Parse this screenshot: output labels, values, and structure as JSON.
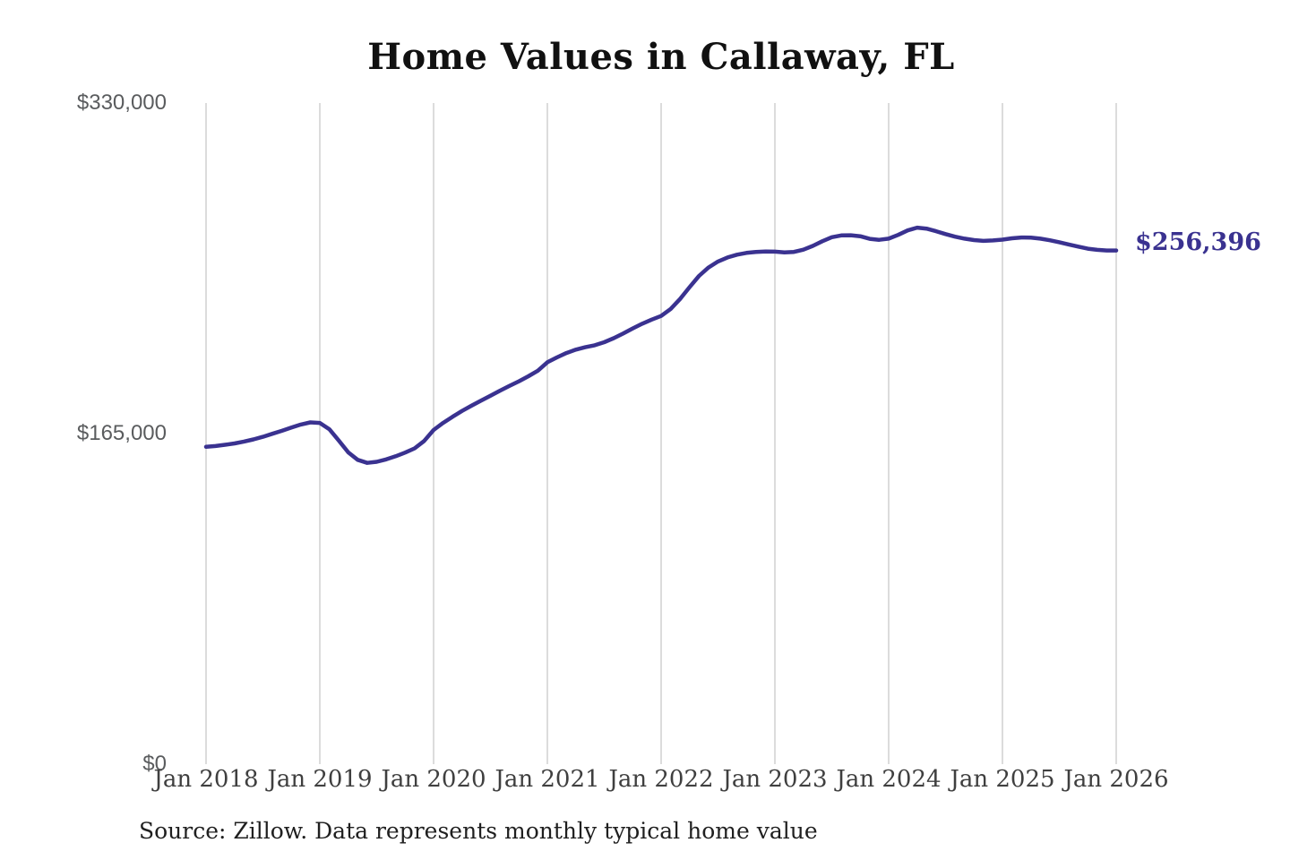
{
  "header": {
    "title": "Home Values in Callaway, FL"
  },
  "chart_data": {
    "type": "line",
    "title": "Home Values in Callaway, FL",
    "xlabel": "",
    "ylabel": "",
    "ylim": [
      0,
      330000
    ],
    "grid": "vertical-only",
    "gridline_color": "#c9c9c9",
    "x_frequency": "monthly",
    "x_start": "Jan 2018",
    "x_end": "Jan 2026",
    "x_tick_labels": [
      "Jan 2018",
      "Jan 2019",
      "Jan 2020",
      "Jan 2021",
      "Jan 2022",
      "Jan 2023",
      "Jan 2024",
      "Jan 2025",
      "Jan 2026"
    ],
    "y_ticks": [
      {
        "label": "$330,000",
        "value": 330000
      },
      {
        "label": "$165,000",
        "value": 165000
      },
      {
        "label": "$0",
        "value": 0
      }
    ],
    "series": [
      {
        "name": "Monthly typical home value",
        "color": "#3a3290",
        "values": [
          158400,
          158800,
          159400,
          160100,
          161000,
          162100,
          163400,
          164900,
          166400,
          168000,
          169500,
          170600,
          170300,
          167200,
          161500,
          155600,
          151900,
          150400,
          150900,
          152100,
          153700,
          155500,
          157600,
          161300,
          166800,
          170300,
          173400,
          176300,
          178900,
          181400,
          183900,
          186400,
          188800,
          191100,
          193600,
          196400,
          200600,
          203000,
          205200,
          206900,
          208100,
          209100,
          210600,
          212600,
          215000,
          217500,
          219800,
          221900,
          223700,
          227200,
          232200,
          238100,
          243700,
          247900,
          250900,
          252900,
          254300,
          255200,
          255700,
          255900,
          255800,
          255400,
          255700,
          256800,
          258700,
          261000,
          263000,
          263900,
          264000,
          263500,
          262200,
          261700,
          262300,
          264200,
          266400,
          267800,
          267300,
          266000,
          264600,
          263300,
          262300,
          261600,
          261200,
          261400,
          261800,
          262500,
          262900,
          262800,
          262300,
          261500,
          260500,
          259400,
          258300,
          257300,
          256700,
          256400,
          256396
        ]
      }
    ],
    "end_label": "$256,396",
    "end_value": 256396,
    "accent_color": "#3a3290"
  },
  "footer": {
    "source": "Source: Zillow. Data represents monthly typical home value"
  }
}
